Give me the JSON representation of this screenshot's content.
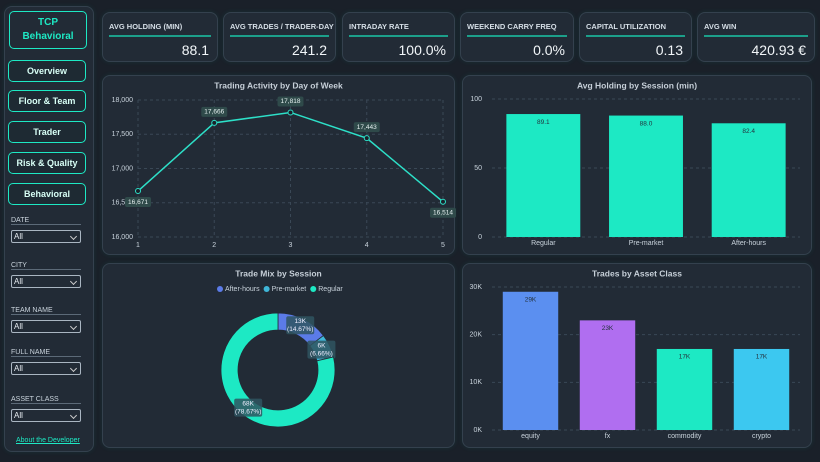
{
  "sidebar": {
    "title": "TCP Behavioral",
    "nav": [
      "Overview",
      "Floor & Team",
      "Trader",
      "Risk & Quality",
      "Behavioral"
    ],
    "filters": [
      {
        "label": "DATE",
        "value": "All"
      },
      {
        "label": "CITY",
        "value": "All"
      },
      {
        "label": "TEAM NAME",
        "value": "All"
      },
      {
        "label": "FULL NAME",
        "value": "All"
      },
      {
        "label": "ASSET CLASS",
        "value": "All"
      }
    ],
    "footer": "About the Developer"
  },
  "kpis": [
    {
      "label": "AVG HOLDING (MIN)",
      "value": "88.1"
    },
    {
      "label": "AVG TRADES / TRADER-DAY",
      "value": "241.2"
    },
    {
      "label": "INTRADAY RATE",
      "value": "100.0%"
    },
    {
      "label": "WEEKEND CARRY FREQ",
      "value": "0.0%"
    },
    {
      "label": "CAPITAL UTILIZATION",
      "value": "0.13"
    },
    {
      "label": "AVG WIN",
      "value": "420.93 €"
    }
  ],
  "chart_data": [
    {
      "type": "line",
      "title": "Trading Activity by Day of Week",
      "x": [
        1,
        2,
        3,
        4,
        5
      ],
      "values": [
        16671,
        17666,
        17818,
        17443,
        16514
      ],
      "value_labels": [
        "16,671",
        "17,666",
        "17,818",
        "17,443",
        "16,514"
      ],
      "color": "#2de0c8",
      "xlim": [
        1,
        5
      ],
      "xticks": [
        1,
        2,
        3,
        4,
        5
      ],
      "ylim": [
        16000,
        18000
      ],
      "yticks": [
        {
          "value": 16000,
          "label": "16,000"
        },
        {
          "value": 16500,
          "label": "16,500"
        },
        {
          "value": 17000,
          "label": "17,000"
        },
        {
          "value": 17500,
          "label": "17,500"
        },
        {
          "value": 18000,
          "label": "18,000"
        }
      ],
      "grid": true
    },
    {
      "type": "bar",
      "title": "Avg Holding by Session (min)",
      "categories": [
        "Regular",
        "Pre-market",
        "After-hours"
      ],
      "values": [
        89.1,
        88.0,
        82.4
      ],
      "value_labels": [
        "89.1",
        "88.0",
        "82.4"
      ],
      "color": "#1de9c4",
      "ylim": [
        0,
        100
      ],
      "yticks": [
        0,
        50,
        100
      ],
      "grid": true
    },
    {
      "type": "pie",
      "title": "Trade Mix by Session",
      "categories": [
        "After-hours",
        "Pre-market",
        "Regular"
      ],
      "values": [
        14.67,
        6.66,
        78.67
      ],
      "value_labels": [
        "13K (14.67%)",
        "6K (6.66%)",
        "68K (78.67%)"
      ],
      "colors": [
        "#5b7be8",
        "#3fb6d8",
        "#1de9c4"
      ]
    },
    {
      "type": "bar",
      "title": "Trades by Asset Class",
      "categories": [
        "equity",
        "fx",
        "commodity",
        "crypto"
      ],
      "values": [
        29000,
        23000,
        17000,
        17000
      ],
      "value_labels": [
        "29K",
        "23K",
        "17K",
        "17K"
      ],
      "colors": [
        "#5b8ff0",
        "#b06ef0",
        "#1de9c4",
        "#3cc8f0"
      ],
      "ylim": [
        0,
        30000
      ],
      "yticks": [
        {
          "value": 0,
          "label": "0K"
        },
        {
          "value": 10000,
          "label": "10K"
        },
        {
          "value": 20000,
          "label": "20K"
        },
        {
          "value": 30000,
          "label": "30K"
        }
      ],
      "grid": true
    }
  ]
}
